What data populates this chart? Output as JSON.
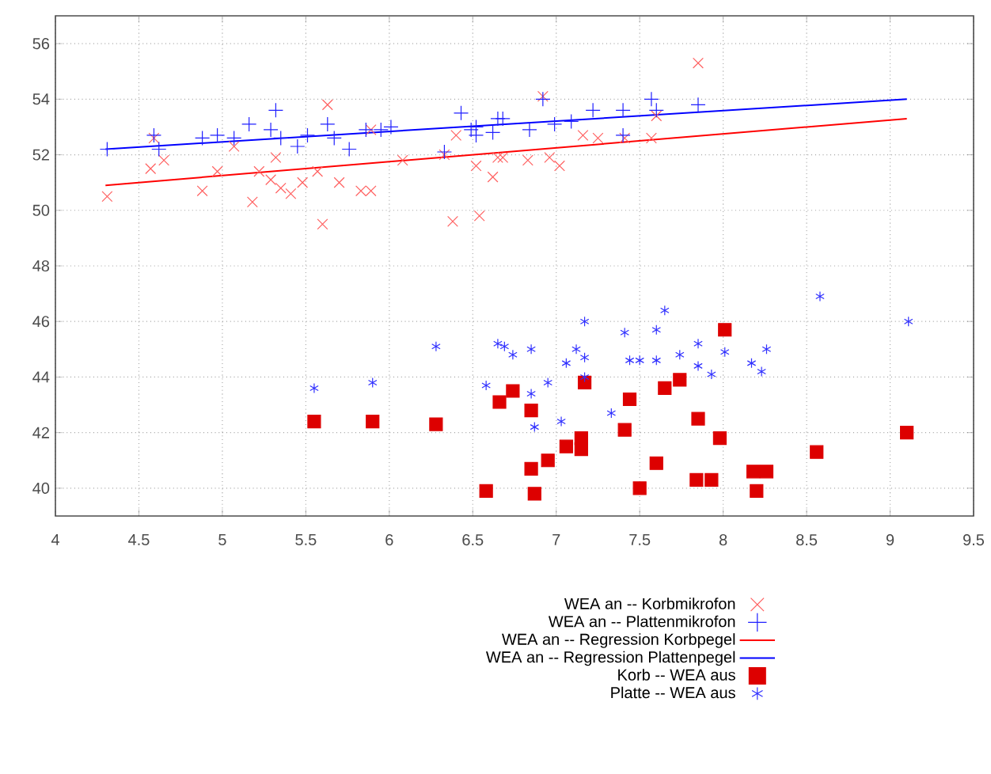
{
  "chart_data": {
    "type": "scatter",
    "xlim": [
      4,
      9.5
    ],
    "ylim": [
      39,
      57
    ],
    "xticks": [
      4,
      4.5,
      5,
      5.5,
      6,
      6.5,
      7,
      7.5,
      8,
      8.5,
      9,
      9.5
    ],
    "yticks": [
      40,
      42,
      44,
      46,
      48,
      50,
      52,
      54,
      56
    ],
    "grid": true,
    "legend": "bottom",
    "series": [
      {
        "name": "WEA an -- Korbmikrofon",
        "marker": "cross",
        "color": "#ff6060",
        "x": [
          4.31,
          4.59,
          4.57,
          4.65,
          4.88,
          4.97,
          5.07,
          5.18,
          5.22,
          5.29,
          5.35,
          5.41,
          5.48,
          5.32,
          5.57,
          5.6,
          5.63,
          5.7,
          5.83,
          5.89,
          5.89,
          6.08,
          6.33,
          6.38,
          6.54,
          6.52,
          6.62,
          6.65,
          6.4,
          6.83,
          7.02,
          6.92,
          7.16,
          7.25,
          7.41,
          7.57,
          7.6,
          7.85,
          6.68,
          6.96
        ],
        "values": [
          50.5,
          52.6,
          51.5,
          51.8,
          50.7,
          51.4,
          52.3,
          50.3,
          51.4,
          51.1,
          50.8,
          50.6,
          51.0,
          51.9,
          51.4,
          49.5,
          53.8,
          51.0,
          50.7,
          50.7,
          52.9,
          51.8,
          52.0,
          49.6,
          49.8,
          51.6,
          51.2,
          51.9,
          52.7,
          51.8,
          51.6,
          54.1,
          52.7,
          52.6,
          52.6,
          52.6,
          53.4,
          55.3,
          51.9,
          51.9
        ]
      },
      {
        "name": "WEA an -- Plattenmikrofon",
        "marker": "plus",
        "color": "#2020ff",
        "x": [
          4.31,
          4.59,
          4.62,
          4.88,
          4.97,
          5.07,
          5.16,
          5.29,
          5.32,
          5.35,
          5.45,
          5.51,
          5.63,
          5.67,
          5.76,
          5.86,
          5.95,
          6.01,
          6.33,
          6.43,
          6.49,
          6.52,
          6.62,
          6.68,
          6.52,
          6.65,
          6.84,
          6.92,
          6.99,
          7.09,
          7.22,
          7.4,
          7.4,
          7.57,
          7.6,
          7.85
        ],
        "values": [
          52.2,
          52.7,
          52.2,
          52.6,
          52.7,
          52.6,
          53.1,
          52.9,
          53.6,
          52.6,
          52.3,
          52.7,
          53.1,
          52.6,
          52.2,
          52.9,
          52.9,
          53.0,
          52.1,
          53.5,
          52.9,
          52.7,
          52.8,
          53.3,
          53.0,
          53.3,
          52.9,
          54.0,
          53.1,
          53.2,
          53.6,
          53.6,
          52.7,
          54.0,
          53.6,
          53.8
        ]
      },
      {
        "name": "WEA an -- Regression Korbpegel",
        "type": "line",
        "marker": "none",
        "color": "#ff0000",
        "x": [
          4.3,
          9.1
        ],
        "values": [
          50.9,
          53.3
        ]
      },
      {
        "name": "WEA an -- Regression Plattenpegel",
        "type": "line",
        "marker": "none",
        "color": "#0000ff",
        "x": [
          4.3,
          9.1
        ],
        "values": [
          52.2,
          54.0
        ]
      },
      {
        "name": "Korb -- WEA aus",
        "marker": "square",
        "color": "#dd0000",
        "x": [
          5.55,
          5.9,
          6.28,
          6.58,
          6.66,
          6.74,
          6.85,
          6.85,
          6.87,
          6.95,
          7.06,
          7.15,
          7.15,
          7.17,
          7.44,
          7.41,
          7.5,
          7.6,
          7.65,
          7.74,
          7.85,
          7.84,
          7.93,
          7.98,
          8.01,
          8.18,
          8.2,
          8.26,
          8.56,
          9.1
        ],
        "values": [
          42.4,
          42.4,
          42.3,
          39.9,
          43.1,
          43.5,
          42.8,
          40.7,
          39.8,
          41.0,
          41.5,
          41.8,
          41.4,
          43.8,
          43.2,
          42.1,
          40.0,
          40.9,
          43.6,
          43.9,
          42.5,
          40.3,
          40.3,
          41.8,
          45.7,
          40.6,
          39.9,
          40.6,
          41.3,
          42.0
        ]
      },
      {
        "name": "Platte -- WEA aus",
        "color": "#3030ff",
        "x": [
          5.55,
          5.9,
          6.28,
          6.58,
          6.65,
          6.69,
          6.74,
          6.85,
          6.85,
          6.87,
          6.95,
          7.03,
          7.06,
          7.12,
          7.17,
          7.17,
          7.17,
          7.33,
          7.41,
          7.44,
          7.5,
          7.6,
          7.6,
          7.65,
          7.74,
          7.85,
          7.85,
          7.93,
          8.01,
          8.17,
          8.23,
          8.26,
          8.58,
          9.11
        ],
        "values": [
          43.6,
          43.8,
          45.1,
          43.7,
          45.2,
          45.1,
          44.8,
          45.0,
          43.4,
          42.2,
          43.8,
          42.4,
          44.5,
          45.0,
          46.0,
          44.7,
          44.0,
          42.7,
          45.6,
          44.6,
          44.6,
          45.7,
          44.6,
          46.4,
          44.8,
          45.2,
          44.4,
          44.1,
          44.9,
          44.5,
          44.2,
          45.0,
          46.9,
          46.0
        ]
      }
    ]
  }
}
